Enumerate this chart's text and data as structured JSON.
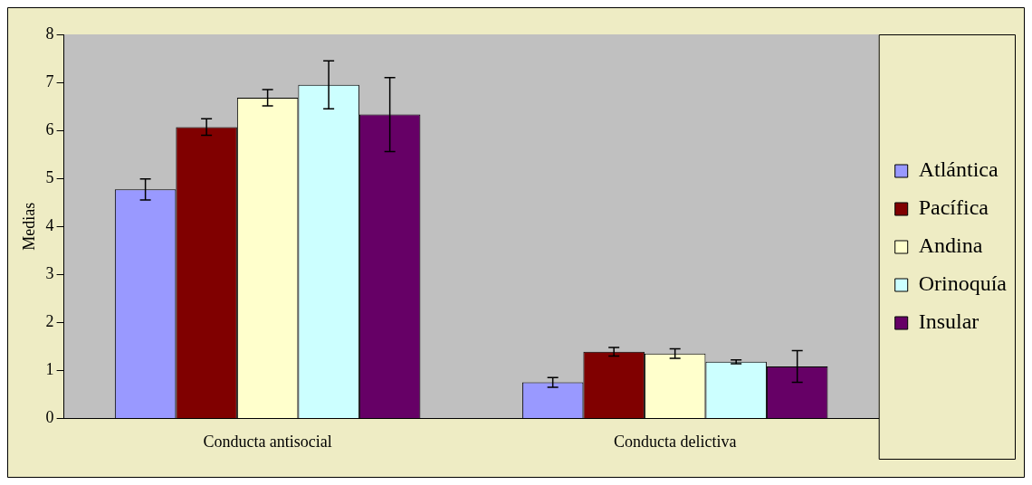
{
  "chart_data": {
    "type": "bar",
    "ylabel": "Medias",
    "categories": [
      "Conducta antisocial",
      "Conducta delictiva"
    ],
    "series": [
      {
        "name": "Atlántica",
        "color": "#9999ff",
        "values": [
          4.77,
          0.75
        ],
        "errors": [
          0.22,
          0.1
        ]
      },
      {
        "name": "Pacífica",
        "color": "#800000",
        "values": [
          6.07,
          1.39
        ],
        "errors": [
          0.17,
          0.09
        ]
      },
      {
        "name": "Andina",
        "color": "#ffffcc",
        "values": [
          6.68,
          1.35
        ],
        "errors": [
          0.17,
          0.1
        ]
      },
      {
        "name": "Orinoquía",
        "color": "#ccffff",
        "values": [
          6.95,
          1.18
        ],
        "errors": [
          0.5,
          0.04
        ]
      },
      {
        "name": "Insular",
        "color": "#660066",
        "values": [
          6.33,
          1.08
        ],
        "errors": [
          0.77,
          0.33
        ]
      }
    ],
    "ylim": [
      0,
      8
    ],
    "yticks": [
      0,
      1,
      2,
      3,
      4,
      5,
      6,
      7,
      8
    ],
    "grid": false,
    "legend": "right"
  }
}
